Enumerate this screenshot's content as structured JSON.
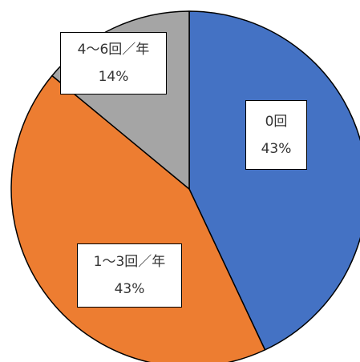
{
  "chart_data": {
    "type": "pie",
    "title": "",
    "slices": [
      {
        "label": "0回",
        "percent_label": "43%",
        "value": 43,
        "color": "#4472C4"
      },
      {
        "label": "1〜3回／年",
        "percent_label": "43%",
        "value": 43,
        "color": "#ED7D31"
      },
      {
        "label": "4〜6回／年",
        "percent_label": "14%",
        "value": 14,
        "color": "#A5A5A5"
      }
    ],
    "start_angle_deg": 0,
    "direction": "clockwise",
    "legend": "none"
  }
}
